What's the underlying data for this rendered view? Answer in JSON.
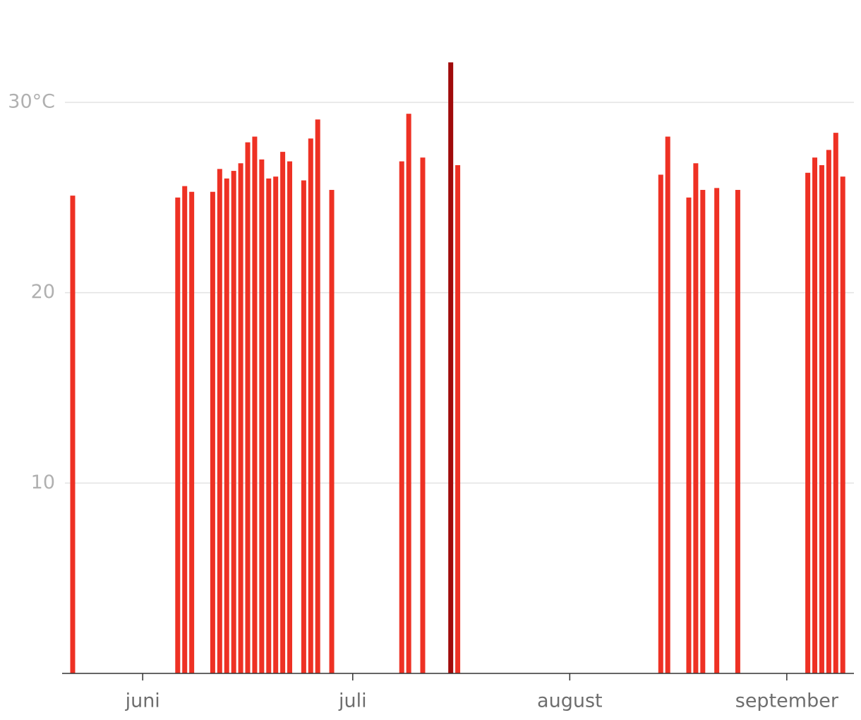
{
  "chart_data": {
    "type": "bar",
    "categories": [
      null,
      null,
      null,
      null,
      null,
      null,
      null,
      null,
      null,
      null,
      "juni",
      null,
      null,
      null,
      null,
      null,
      null,
      null,
      null,
      null,
      null,
      null,
      null,
      null,
      null,
      null,
      null,
      null,
      null,
      null,
      null,
      null,
      null,
      null,
      null,
      null,
      null,
      null,
      null,
      null,
      "juli",
      null,
      null,
      null,
      null,
      null,
      null,
      null,
      null,
      null,
      null,
      null,
      null,
      null,
      null,
      null,
      null,
      null,
      null,
      null,
      null,
      null,
      null,
      null,
      null,
      null,
      null,
      null,
      null,
      null,
      null,
      "august",
      null,
      null,
      null,
      null,
      null,
      null,
      null,
      null,
      null,
      null,
      null,
      null,
      null,
      null,
      null,
      null,
      null,
      null,
      null,
      null,
      null,
      null,
      null,
      null,
      null,
      null,
      null,
      null,
      null,
      null,
      "september",
      null,
      null,
      null,
      null,
      null,
      null,
      null,
      null
    ],
    "values": [
      25.1,
      null,
      null,
      null,
      null,
      null,
      null,
      null,
      null,
      null,
      null,
      null,
      null,
      null,
      null,
      25.0,
      25.6,
      25.3,
      null,
      null,
      25.3,
      26.5,
      26.0,
      26.4,
      26.8,
      27.9,
      28.2,
      27.0,
      26.0,
      26.1,
      27.4,
      26.9,
      null,
      25.9,
      28.1,
      29.1,
      null,
      25.4,
      null,
      null,
      null,
      null,
      null,
      null,
      null,
      null,
      null,
      26.9,
      29.4,
      null,
      27.1,
      null,
      null,
      null,
      32.1,
      26.7,
      null,
      null,
      null,
      null,
      null,
      null,
      null,
      null,
      null,
      null,
      null,
      null,
      null,
      null,
      null,
      null,
      null,
      null,
      null,
      null,
      null,
      null,
      null,
      null,
      null,
      null,
      null,
      null,
      26.2,
      28.2,
      null,
      null,
      25.0,
      26.8,
      25.4,
      null,
      25.5,
      null,
      null,
      25.4,
      null,
      null,
      null,
      null,
      null,
      null,
      null,
      null,
      null,
      26.3,
      27.1,
      26.7,
      27.5,
      28.4,
      26.1
    ],
    "color": "#ee3124",
    "highlight": {
      "index": 54,
      "color": "#a00a0a"
    },
    "ylim": [
      0,
      33
    ],
    "yticks": [
      10,
      20,
      {
        "value": 30,
        "label": "30°C"
      }
    ],
    "grid": true
  }
}
